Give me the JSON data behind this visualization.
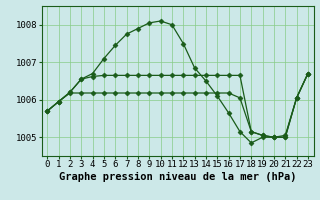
{
  "x": [
    0,
    1,
    2,
    3,
    4,
    5,
    6,
    7,
    8,
    9,
    10,
    11,
    12,
    13,
    14,
    15,
    16,
    17,
    18,
    19,
    20,
    21,
    22,
    23
  ],
  "line1": [
    1005.7,
    1005.95,
    1006.2,
    1006.55,
    1006.7,
    1007.1,
    1007.45,
    1007.75,
    1007.9,
    1008.05,
    1008.1,
    1008.0,
    1007.5,
    1006.85,
    1006.5,
    1006.1,
    1005.65,
    1005.15,
    1004.85,
    1005.0,
    1005.0,
    1005.05,
    1006.05,
    1006.7
  ],
  "line2": [
    1005.7,
    1005.95,
    1006.2,
    1006.55,
    1006.62,
    1006.65,
    1006.65,
    1006.65,
    1006.65,
    1006.65,
    1006.65,
    1006.65,
    1006.65,
    1006.65,
    1006.65,
    1006.65,
    1006.65,
    1006.65,
    1005.15,
    1005.05,
    1005.0,
    1005.0,
    1006.05,
    1006.7
  ],
  "line3": [
    1005.7,
    1005.95,
    1006.18,
    1006.18,
    1006.18,
    1006.18,
    1006.18,
    1006.18,
    1006.18,
    1006.18,
    1006.18,
    1006.18,
    1006.18,
    1006.18,
    1006.18,
    1006.18,
    1006.18,
    1006.05,
    1005.15,
    1005.05,
    1005.0,
    1005.0,
    1006.05,
    1006.7
  ],
  "line_color": "#1a5c1a",
  "bg_color": "#cce8e8",
  "grid_color": "#88cc88",
  "title": "Graphe pression niveau de la mer (hPa)",
  "ylim": [
    1004.5,
    1008.5
  ],
  "yticks": [
    1005,
    1006,
    1007,
    1008
  ],
  "xticks": [
    0,
    1,
    2,
    3,
    4,
    5,
    6,
    7,
    8,
    9,
    10,
    11,
    12,
    13,
    14,
    15,
    16,
    17,
    18,
    19,
    20,
    21,
    22,
    23
  ],
  "title_fontsize": 7.5,
  "tick_fontsize": 6.5,
  "marker": "D",
  "markersize": 2.5
}
